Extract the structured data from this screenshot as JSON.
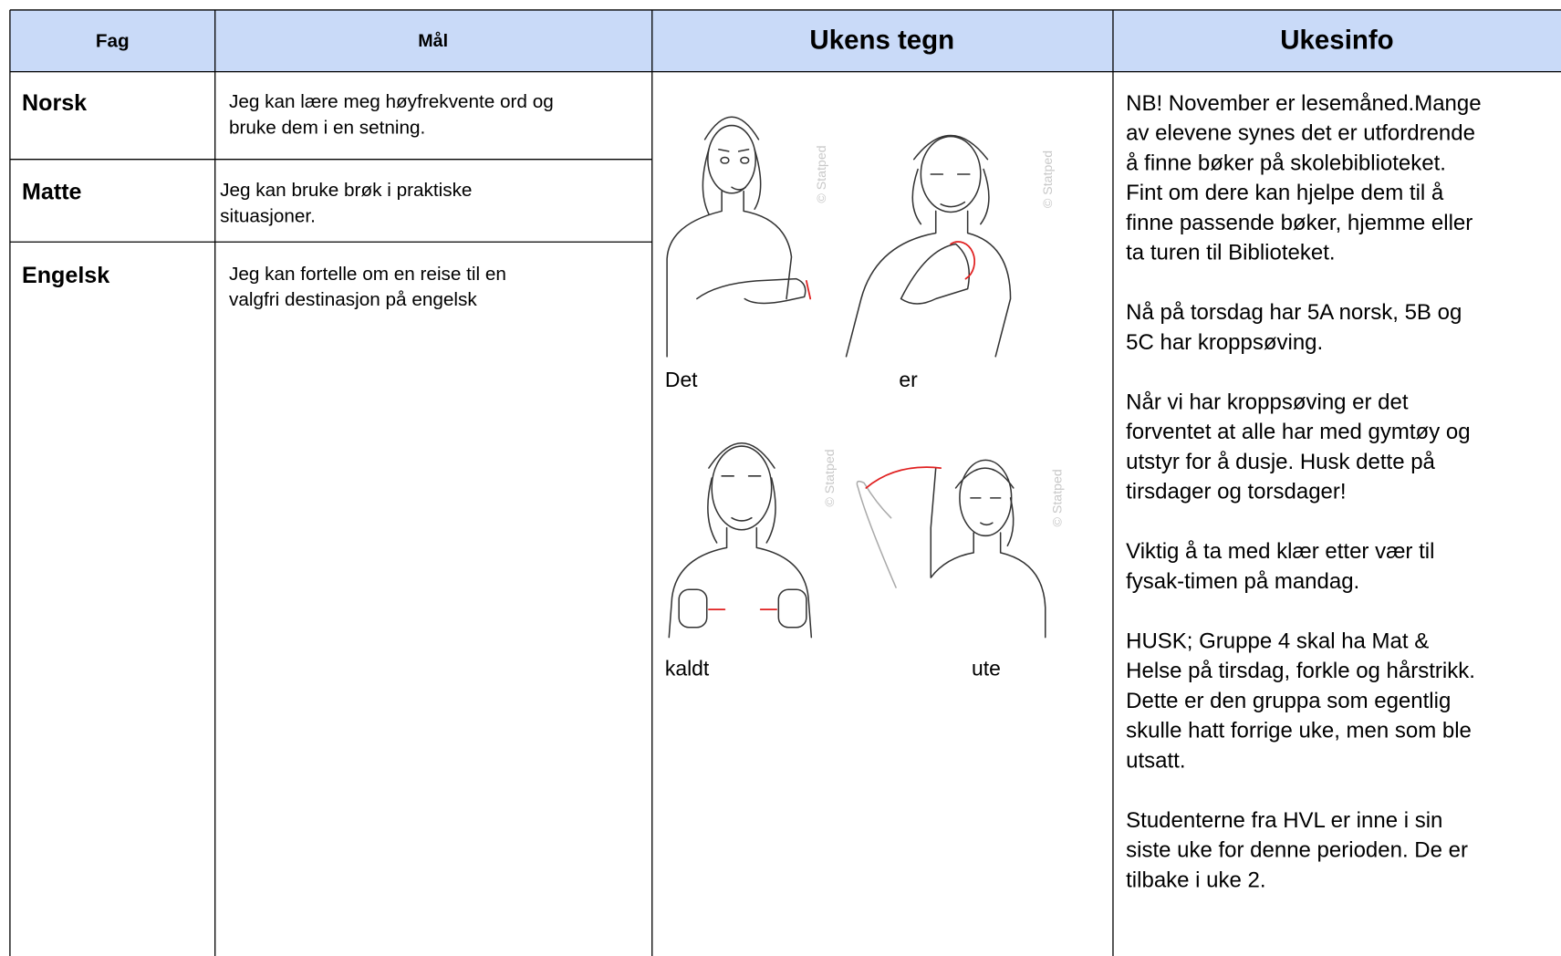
{
  "header": [
    "Fag",
    "Mål",
    "Ukens tegn",
    "Ukesinfo"
  ],
  "rows": [
    {
      "subject": "Norsk",
      "goal": [
        "Jeg kan lære meg høyfrekvente ord og",
        "bruke dem i en setning."
      ]
    },
    {
      "subject": "Matte",
      "goal": [
        "Jeg kan bruke brøk i praktiske",
        "situasjoner."
      ]
    },
    {
      "subject": "Engelsk",
      "goal": [
        "Jeg kan fortelle om en reise til en",
        "valgfri destinasjon på engelsk"
      ]
    }
  ],
  "signs": [
    "Det",
    "er",
    "kaldt",
    "ute"
  ],
  "watermark": "© Statped",
  "info": [
    [
      "NB! November er lesemåned.Mange",
      "av elevene synes det er utfordrende",
      "å finne bøker på skolebiblioteket.",
      "Fint om dere kan hjelpe dem til å",
      "finne passende bøker, hjemme eller",
      "ta turen til Biblioteket."
    ],
    [
      "Nå på torsdag har 5A norsk, 5B og",
      "5C har kroppsøving."
    ],
    [
      "Når vi har kroppsøving er det",
      "forventet at alle har med gymtøy og",
      "utstyr for å dusje. Husk dette på",
      "tirsdager og torsdager!"
    ],
    [
      "Viktig å ta med klær etter vær til",
      "fysak-timen på mandag."
    ],
    [
      "HUSK; Gruppe 4 skal ha Mat &",
      "Helse på tirsdag, forkle og hårstrikk.",
      "Dette er den gruppa som egentlig",
      "skulle hatt forrige uke, men som ble",
      "utsatt."
    ],
    [
      "Studenterne fra HVL er inne i sin",
      "siste uke for denne perioden. De er",
      "tilbake i uke 2."
    ]
  ]
}
